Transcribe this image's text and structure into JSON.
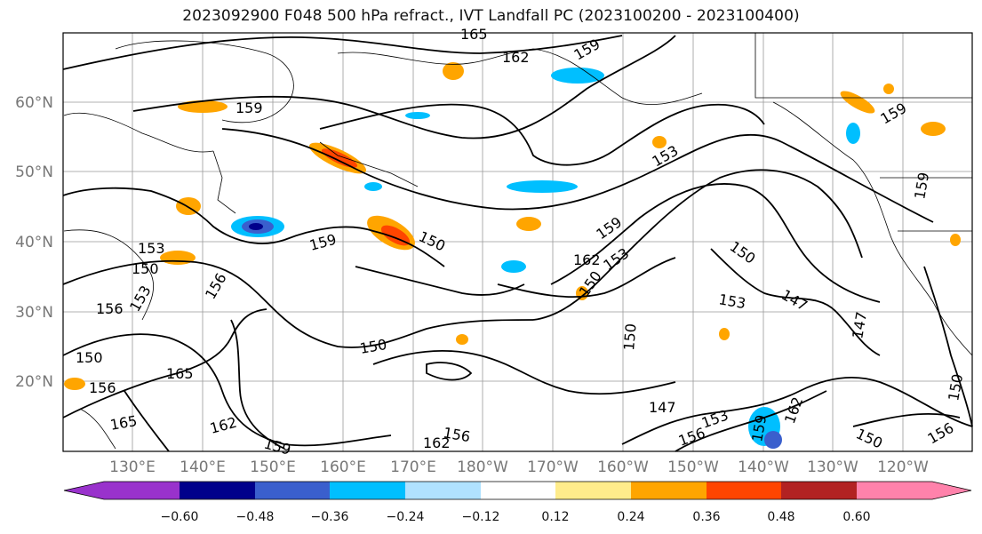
{
  "title": "2023092900 F048 500 hPa refract., IVT Landfall PC (2023100200 - 2023100400)",
  "map": {
    "lat_labels": [
      "60°N",
      "50°N",
      "40°N",
      "30°N",
      "20°N"
    ],
    "lon_labels": [
      "130°E",
      "140°E",
      "150°E",
      "160°E",
      "170°E",
      "180°W",
      "170°W",
      "160°W",
      "150°W",
      "140°W",
      "130°W",
      "120°W"
    ],
    "contour_labels": [
      "165",
      "162",
      "159",
      "159",
      "159",
      "153",
      "159",
      "159",
      "153",
      "150",
      "150",
      "159",
      "162",
      "153",
      "156",
      "150",
      "156",
      "153",
      "153",
      "147",
      "147",
      "150",
      "150",
      "165",
      "150",
      "150",
      "162",
      "159",
      "165",
      "147",
      "153",
      "156",
      "159",
      "162",
      "162",
      "156",
      "156",
      "150",
      "156",
      "150"
    ]
  },
  "colorbar": {
    "tick_labels": [
      "−0.60",
      "−0.48",
      "−0.36",
      "−0.24",
      "−0.12",
      "0.12",
      "0.24",
      "0.36",
      "0.48",
      "0.60"
    ],
    "colors": [
      "#9932cc",
      "#00008b",
      "#3a5fcd",
      "#00bfff",
      "#b0e2ff",
      "#ffffff",
      "#ffec8b",
      "#ffa500",
      "#ff4500",
      "#b22222",
      "#ff82ab"
    ]
  }
}
